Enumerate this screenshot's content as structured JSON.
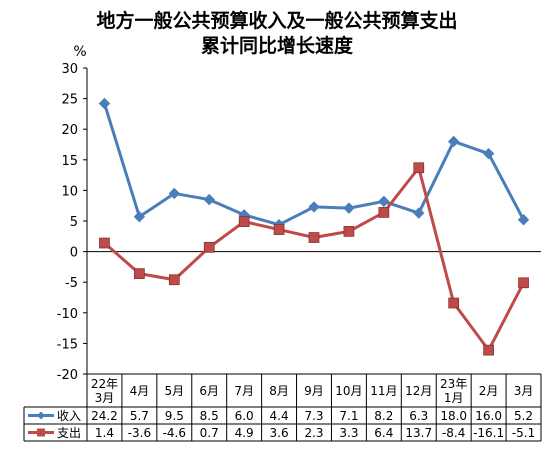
{
  "chart_data": {
    "type": "line",
    "title_line1": "地方一般公共预算收入及一般公共预算支出",
    "title_line2": "累计同比增长速度",
    "ylabel": "%",
    "ylim": [
      -20,
      30
    ],
    "yticks": [
      30,
      25,
      20,
      15,
      10,
      5,
      0,
      -5,
      -10,
      -15,
      -20
    ],
    "grid": false,
    "categories": [
      [
        "22年",
        "3月"
      ],
      [
        "4月"
      ],
      [
        "5月"
      ],
      [
        "6月"
      ],
      [
        "7月"
      ],
      [
        "8月"
      ],
      [
        "9月"
      ],
      [
        "10月"
      ],
      [
        "11月"
      ],
      [
        "12月"
      ],
      [
        "23年",
        "1月"
      ],
      [
        "2月"
      ],
      [
        "3月"
      ]
    ],
    "series": [
      {
        "name": "收入",
        "color": "#4a7ebb",
        "marker": "diamond",
        "values": [
          24.2,
          5.7,
          9.5,
          8.5,
          6.0,
          4.4,
          7.3,
          7.1,
          8.2,
          6.3,
          18.0,
          16.0,
          5.2
        ],
        "labels": [
          "24.2",
          "5.7",
          "9.5",
          "8.5",
          "6.0",
          "4.4",
          "7.3",
          "7.1",
          "8.2",
          "6.3",
          "18.0",
          "16.0",
          "5.2"
        ]
      },
      {
        "name": "支出",
        "color": "#be4b48",
        "marker": "square",
        "values": [
          1.4,
          -3.6,
          -4.6,
          0.7,
          4.9,
          3.6,
          2.3,
          3.3,
          6.4,
          13.7,
          -8.4,
          -16.1,
          -5.1
        ],
        "labels": [
          "1.4",
          "-3.6",
          "-4.6",
          "0.7",
          "4.9",
          "3.6",
          "2.3",
          "3.3",
          "6.4",
          "13.7",
          "-8.4",
          "-16.1",
          "-5.1"
        ]
      }
    ]
  }
}
